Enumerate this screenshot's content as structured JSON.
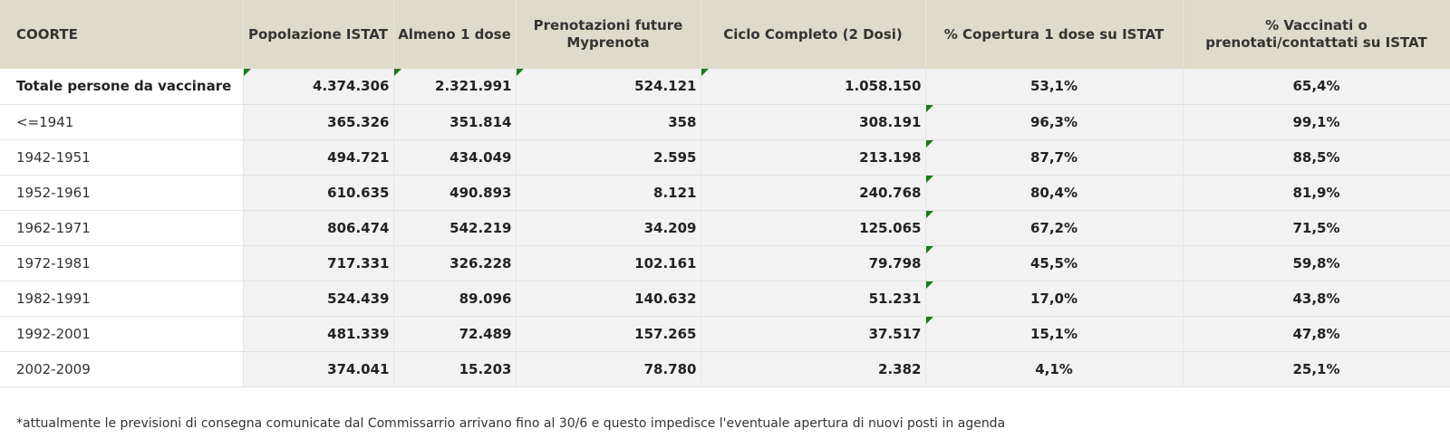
{
  "table": {
    "headers": [
      "COORTE",
      "Popolazione ISTAT",
      "Almeno 1 dose",
      "Prenotazioni future Myprenota",
      "Ciclo Completo (2 Dosi)",
      "% Copertura 1 dose su ISTAT",
      "% Vaccinati o prenotati/contattati su ISTAT"
    ],
    "rows": [
      [
        "Totale persone da vaccinare",
        "4.374.306",
        "2.321.991",
        "524.121",
        "1.058.150",
        "53,1%",
        "65,4%"
      ],
      [
        "<=1941",
        "365.326",
        "351.814",
        "358",
        "308.191",
        "96,3%",
        "99,1%"
      ],
      [
        "1942-1951",
        "494.721",
        "434.049",
        "2.595",
        "213.198",
        "87,7%",
        "88,5%"
      ],
      [
        "1952-1961",
        "610.635",
        "490.893",
        "8.121",
        "240.768",
        "80,4%",
        "81,9%"
      ],
      [
        "1962-1971",
        "806.474",
        "542.219",
        "34.209",
        "125.065",
        "67,2%",
        "71,5%"
      ],
      [
        "1972-1981",
        "717.331",
        "326.228",
        "102.161",
        "79.798",
        "45,5%",
        "59,8%"
      ],
      [
        "1982-1991",
        "524.439",
        "89.096",
        "140.632",
        "51.231",
        "17,0%",
        "43,8%"
      ],
      [
        "1992-2001",
        "481.339",
        "72.489",
        "157.265",
        "37.517",
        "15,1%",
        "47,8%"
      ],
      [
        "2002-2009",
        "374.041",
        "15.203",
        "78.780",
        "2.382",
        "4,1%",
        "25,1%"
      ]
    ]
  },
  "footnote": "*attualmente le previsioni di consegna comunicate dal Commissarrio arrivano fino al 30/6 e questo impedisce l'eventuale apertura di nuovi posti in agenda",
  "colors": {
    "header_bg": "#dfdbca",
    "cell_bg": "#f2f2f2",
    "comment_marker": "#1a7a1a"
  }
}
